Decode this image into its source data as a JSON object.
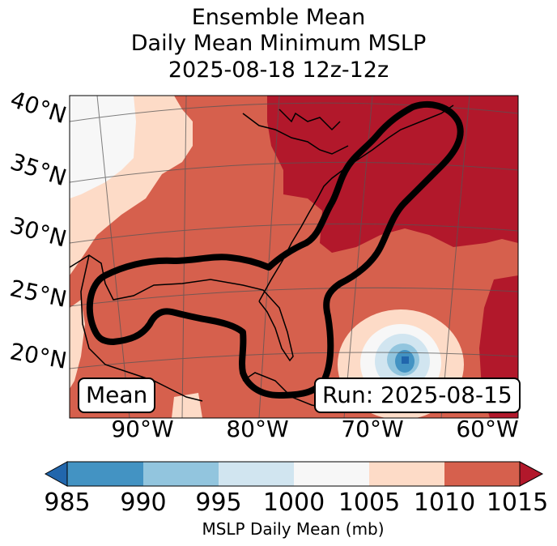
{
  "title": {
    "line1": "Ensemble Mean",
    "line2": "Daily Mean Minimum MSLP",
    "line3": "2025-08-18 12z-12z"
  },
  "map": {
    "lat_labels": [
      "40°N",
      "35°N",
      "30°N",
      "25°N",
      "20°N"
    ],
    "lon_labels": [
      "90°W",
      "80°W",
      "70°W",
      "60°W"
    ],
    "mean_label": "Mean",
    "run_label": "Run: 2025-08-15"
  },
  "colorbar": {
    "label": "MSLP Daily Mean (mb)",
    "ticks": [
      "985",
      "990",
      "995",
      "1000",
      "1005",
      "1010",
      "1015"
    ],
    "colors": {
      "below_985": "#2166ac",
      "985_990": "#4393c3",
      "990_995": "#92c5de",
      "995_1000": "#d1e5f0",
      "1000_1005": "#f7f7f7",
      "1005_1010": "#fddbc7",
      "1010_1015": "#d6604d",
      "above_1015": "#b2182b"
    }
  }
}
